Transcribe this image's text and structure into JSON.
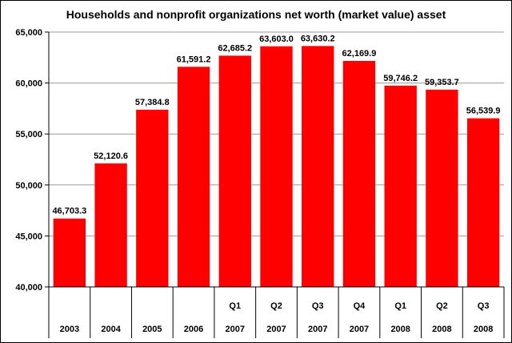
{
  "chart_data": {
    "type": "bar",
    "title": "Households and nonprofit organizations net worth (market value) asset",
    "xlabel": "",
    "ylabel": "",
    "ylim": [
      40000,
      65000
    ],
    "yticks": [
      "40,000",
      "45,000",
      "50,000",
      "55,000",
      "60,000",
      "65,000"
    ],
    "ytick_values": [
      40000,
      45000,
      50000,
      55000,
      60000,
      65000
    ],
    "categories": [
      {
        "quarter": "",
        "year": "2003"
      },
      {
        "quarter": "",
        "year": "2004"
      },
      {
        "quarter": "",
        "year": "2005"
      },
      {
        "quarter": "",
        "year": "2006"
      },
      {
        "quarter": "Q1",
        "year": "2007"
      },
      {
        "quarter": "Q2",
        "year": "2007"
      },
      {
        "quarter": "Q3",
        "year": "2007"
      },
      {
        "quarter": "Q4",
        "year": "2007"
      },
      {
        "quarter": "Q1",
        "year": "2008"
      },
      {
        "quarter": "Q2",
        "year": "2008"
      },
      {
        "quarter": "Q3",
        "year": "2008"
      }
    ],
    "values": [
      46703.3,
      52120.6,
      57384.8,
      61591.2,
      62685.2,
      63603.0,
      63630.2,
      62169.9,
      59746.2,
      59353.7,
      56539.9
    ],
    "labels": [
      "46,703.3",
      "52,120.6",
      "57,384.8",
      "61,591.2",
      "62,685.2",
      "63,603.0",
      "63,630.2",
      "62,169.9",
      "59,746.2",
      "59,353.7",
      "56,539.9"
    ],
    "bar_color": "#ff0000",
    "grid": true
  }
}
